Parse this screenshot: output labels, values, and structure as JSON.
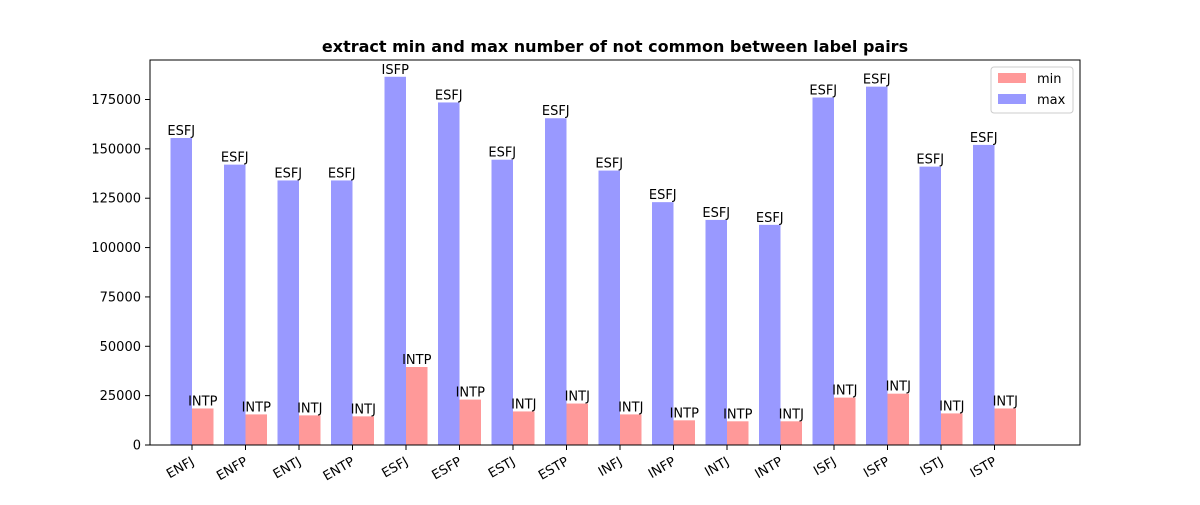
{
  "chart_data": {
    "type": "bar",
    "title": "extract min and max number of not common between label pairs",
    "xlabel": "",
    "ylabel": "",
    "categories": [
      "ENFJ",
      "ENFP",
      "ENTJ",
      "ENTP",
      "ESFJ",
      "ESFP",
      "ESTJ",
      "ESTP",
      "INFJ",
      "INFP",
      "INTJ",
      "INTP",
      "ISFJ",
      "ISFP",
      "ISTJ",
      "ISTP"
    ],
    "ylim": [
      0,
      195000
    ],
    "yticks": [
      0,
      25000,
      50000,
      75000,
      100000,
      125000,
      150000,
      175000
    ],
    "legend": {
      "placement": "top-right",
      "entries": [
        "min",
        "max"
      ]
    },
    "grid": false,
    "series": [
      {
        "name": "max",
        "color": "#9999ff",
        "values": [
          155500,
          142000,
          134000,
          134000,
          186500,
          173500,
          144500,
          165500,
          139000,
          123000,
          114000,
          111500,
          176000,
          181500,
          141000,
          152000
        ],
        "labels": [
          "ESFJ",
          "ESFJ",
          "ESFJ",
          "ESFJ",
          "ISFP",
          "ESFJ",
          "ESFJ",
          "ESFJ",
          "ESFJ",
          "ESFJ",
          "ESFJ",
          "ESFJ",
          "ESFJ",
          "ESFJ",
          "ESFJ",
          "ESFJ"
        ]
      },
      {
        "name": "min",
        "color": "#ff9999",
        "values": [
          18500,
          15500,
          15000,
          14500,
          39500,
          23000,
          17000,
          21000,
          15500,
          12500,
          12000,
          12000,
          24000,
          26000,
          16000,
          18500
        ],
        "labels": [
          "INTP",
          "INTP",
          "INTJ",
          "INTJ",
          "INTP",
          "INTP",
          "INTJ",
          "INTJ",
          "INTJ",
          "INTP",
          "INTP",
          "INTJ",
          "INTJ",
          "INTJ",
          "INTJ",
          "INTJ"
        ]
      }
    ]
  }
}
